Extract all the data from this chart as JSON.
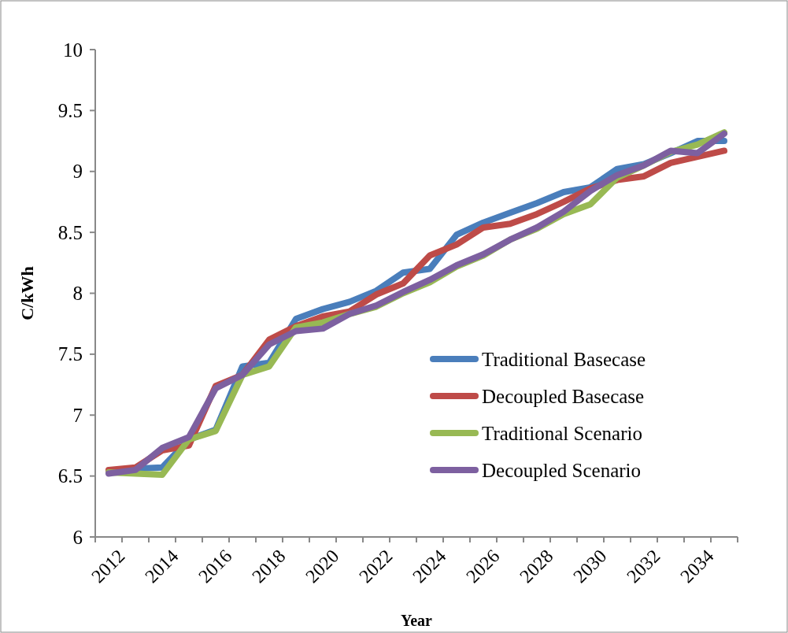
{
  "chart_data": {
    "type": "line",
    "xlabel": "Year",
    "ylabel": "C/kWh",
    "categories": [
      "2012",
      null,
      "2014",
      null,
      "2016",
      null,
      "2018",
      null,
      "2020",
      null,
      "2022",
      null,
      "2024",
      null,
      "2026",
      null,
      "2028",
      null,
      "2030",
      null,
      "2032",
      null,
      "2034",
      null
    ],
    "ylim": [
      6,
      10
    ],
    "yticks": [
      6,
      6.5,
      7,
      7.5,
      8,
      8.5,
      9,
      9.5,
      10
    ],
    "grid": false,
    "legend": "right",
    "marker": "none",
    "line_style": "solid",
    "series": [
      {
        "name": "Traditional Basecase",
        "color": "#4a7ebb",
        "values": [
          6.54,
          6.56,
          6.57,
          6.8,
          6.88,
          7.4,
          7.43,
          7.79,
          7.87,
          7.93,
          8.02,
          8.17,
          8.2,
          8.48,
          8.58,
          8.66,
          8.74,
          8.83,
          8.87,
          9.02,
          9.06,
          9.15,
          9.25,
          9.25
        ]
      },
      {
        "name": "Decoupled Basecase",
        "color": "#be4b48",
        "values": [
          6.55,
          6.57,
          6.71,
          6.75,
          7.24,
          7.33,
          7.62,
          7.73,
          7.81,
          7.85,
          7.99,
          8.08,
          8.31,
          8.4,
          8.54,
          8.57,
          8.65,
          8.75,
          8.86,
          8.93,
          8.96,
          9.07,
          9.12,
          9.17
        ]
      },
      {
        "name": "Traditional Scenario",
        "color": "#98b954",
        "values": [
          6.53,
          6.52,
          6.51,
          6.8,
          6.87,
          7.33,
          7.4,
          7.72,
          7.76,
          7.83,
          7.89,
          8.0,
          8.09,
          8.22,
          8.31,
          8.44,
          8.53,
          8.65,
          8.73,
          8.95,
          9.05,
          9.16,
          9.22,
          9.32
        ]
      },
      {
        "name": "Decoupled Scenario",
        "color": "#7d60a0",
        "values": [
          6.52,
          6.55,
          6.73,
          6.82,
          7.22,
          7.33,
          7.58,
          7.69,
          7.71,
          7.83,
          7.9,
          8.01,
          8.11,
          8.23,
          8.32,
          8.44,
          8.54,
          8.67,
          8.84,
          8.97,
          9.05,
          9.17,
          9.15,
          9.31
        ]
      }
    ]
  }
}
